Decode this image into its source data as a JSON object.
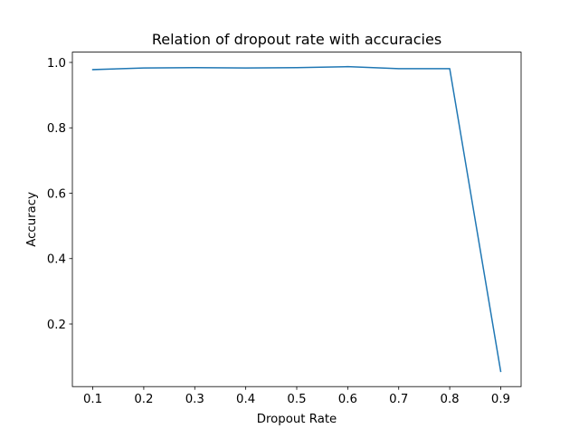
{
  "chart_data": {
    "type": "line",
    "title": "Relation of dropout rate with accuracies",
    "xlabel": "Dropout Rate",
    "ylabel": "Accuracy",
    "x": [
      0.1,
      0.2,
      0.3,
      0.4,
      0.5,
      0.6,
      0.7,
      0.8,
      0.9
    ],
    "series": [
      {
        "values": [
          0.978,
          0.983,
          0.984,
          0.983,
          0.984,
          0.987,
          0.981,
          0.981,
          0.055
        ],
        "color": "#1f77b4"
      }
    ],
    "xlim": [
      0.06,
      0.94
    ],
    "ylim": [
      0.0085,
      1.0315
    ],
    "xticks": [
      0.1,
      0.2,
      0.3,
      0.4,
      0.5,
      0.6,
      0.7,
      0.8,
      0.9
    ],
    "xtick_labels": [
      "0.1",
      "0.2",
      "0.3",
      "0.4",
      "0.5",
      "0.6",
      "0.7",
      "0.8",
      "0.9"
    ],
    "yticks": [
      0.2,
      0.4,
      0.6,
      0.8,
      1.0
    ],
    "ytick_labels": [
      "0.2",
      "0.4",
      "0.6",
      "0.8",
      "1.0"
    ],
    "grid": false,
    "legend": false
  }
}
